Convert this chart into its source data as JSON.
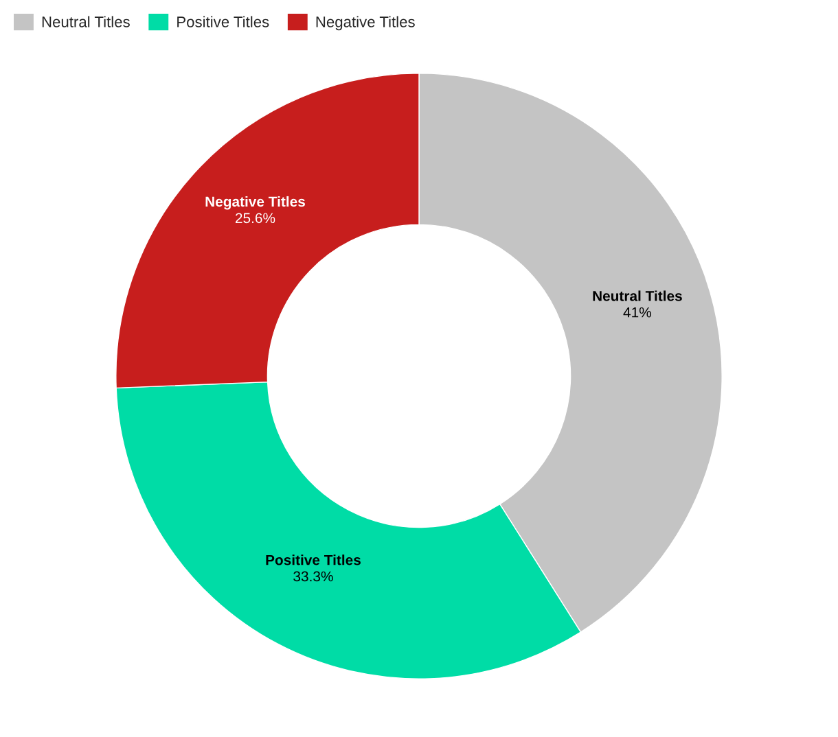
{
  "chart_data": {
    "type": "donut",
    "categories": [
      "Neutral Titles",
      "Positive Titles",
      "Negative Titles"
    ],
    "values": [
      41,
      33.3,
      25.6
    ],
    "colors": [
      "#c4c4c4",
      "#00dca6",
      "#c71e1d"
    ],
    "value_labels": [
      "41%",
      "33.3%",
      "25.6%"
    ],
    "legend": "top left"
  }
}
